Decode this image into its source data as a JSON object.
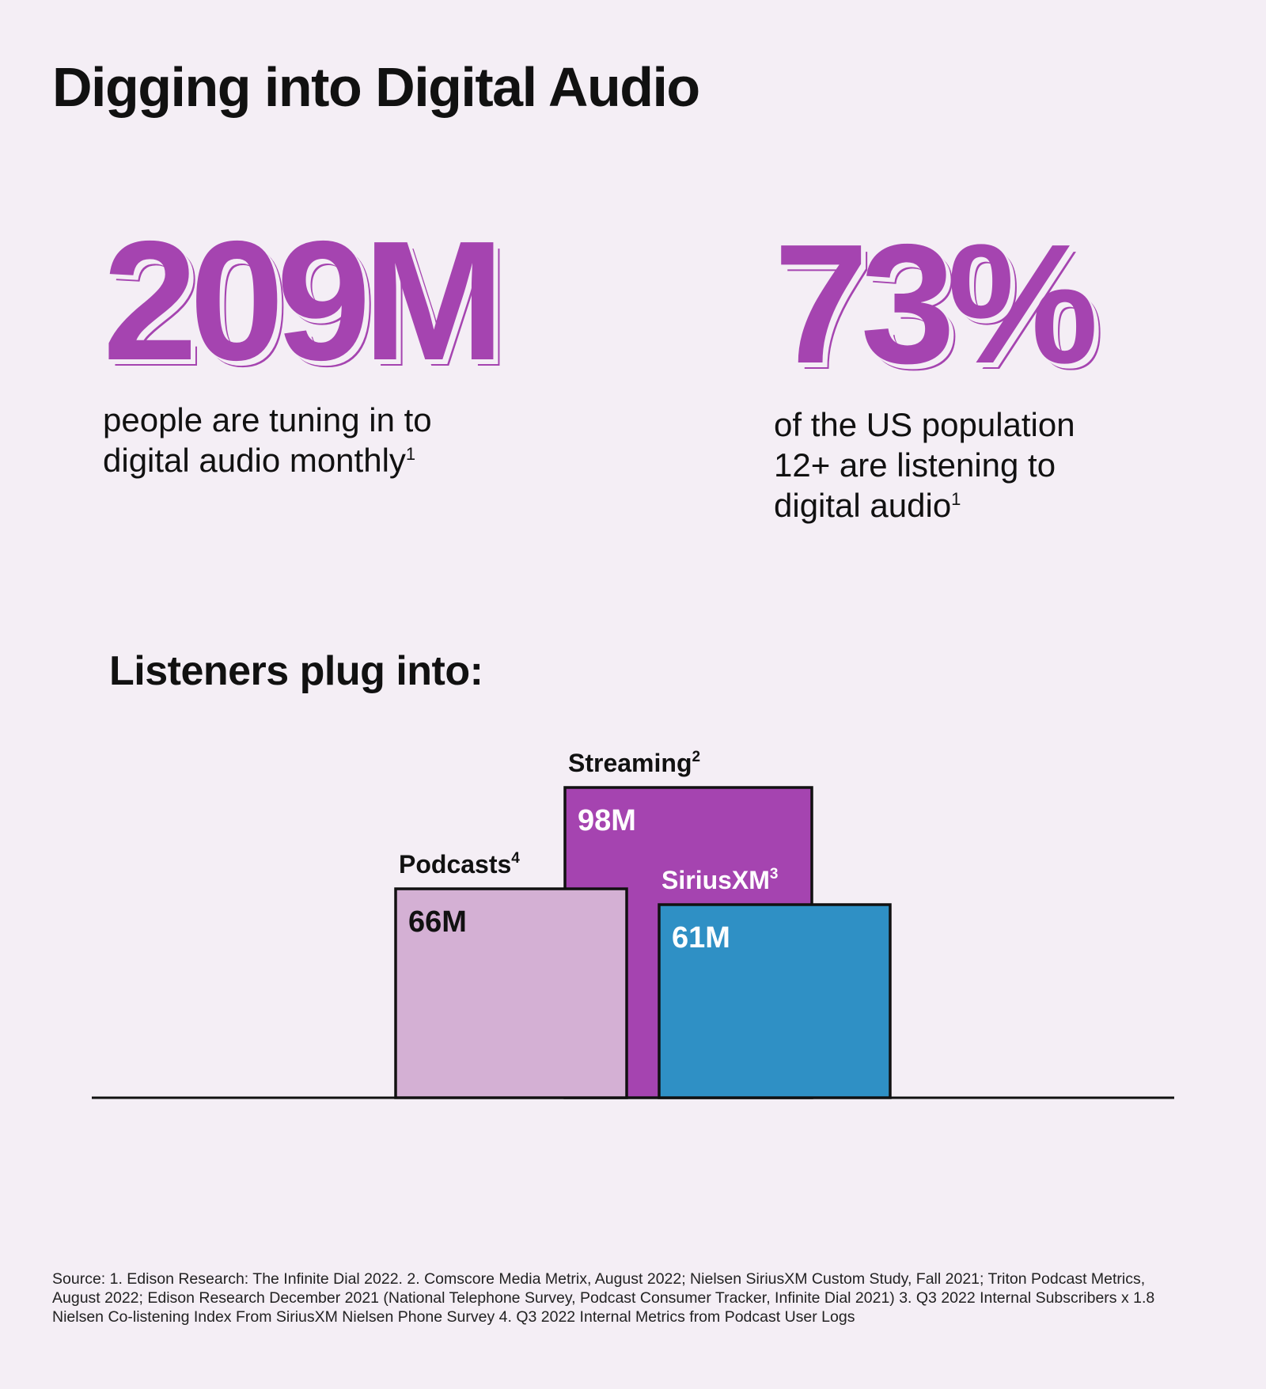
{
  "title": "Digging into Digital Audio",
  "stat1": {
    "value": "209M",
    "desc": "people are tuning in to\ndigital audio monthly",
    "note": "1"
  },
  "stat2": {
    "value": "73%",
    "desc": "of the US population\n12+ are listening to\ndigital audio",
    "note": "1"
  },
  "subtitle": "Listeners plug into:",
  "colors": {
    "background": "#f4eef5",
    "accent": "#a544b0",
    "podcasts": "#d4b0d4",
    "streaming": "#a544b0",
    "siriusxm": "#2f90c5"
  },
  "chart_data": {
    "type": "bar",
    "unit": "M",
    "series": [
      {
        "name": "Podcasts",
        "note": "4",
        "value": 66,
        "label": "66M",
        "color": "#d4b0d4",
        "label_color": "#111111"
      },
      {
        "name": "Streaming",
        "note": "2",
        "value": 98,
        "label": "98M",
        "color": "#a544b0",
        "label_color": "#ffffff"
      },
      {
        "name": "SiriusXM",
        "note": "3",
        "value": 61,
        "label": "61M",
        "color": "#2f90c5",
        "label_color": "#ffffff"
      }
    ]
  },
  "source": "Source: 1. Edison Research: The Infinite Dial 2022. 2. Comscore Media Metrix, August 2022; Nielsen SiriusXM Custom Study, Fall 2021; Triton Podcast Metrics, August 2022; Edison Research December 2021 (National Telephone Survey, Podcast Consumer Tracker, Infinite Dial 2021) 3. Q3 2022 Internal Subscribers x 1.8 Nielsen Co-listening Index From SiriusXM Nielsen Phone Survey 4. Q3 2022 Internal Metrics from Podcast User Logs"
}
